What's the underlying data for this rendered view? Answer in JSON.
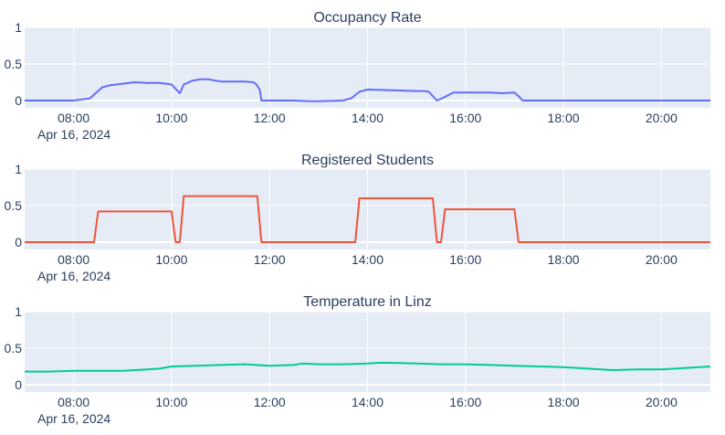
{
  "chart_data": [
    {
      "type": "line",
      "title": "Occupancy Rate",
      "color": "#636efa",
      "xlim": [
        "07:00",
        "21:00"
      ],
      "ylim": [
        0,
        1
      ],
      "x_ticks": [
        "08:00",
        "10:00",
        "12:00",
        "14:00",
        "16:00",
        "18:00",
        "20:00"
      ],
      "x_date_label": "Apr 16, 2024",
      "y_ticks": [
        "0",
        "0.5",
        "1"
      ],
      "x": [
        "07:00",
        "08:00",
        "08:20",
        "08:35",
        "08:45",
        "09:00",
        "09:15",
        "09:30",
        "09:45",
        "10:00",
        "10:05",
        "10:10",
        "10:15",
        "10:25",
        "10:35",
        "10:45",
        "11:00",
        "11:15",
        "11:30",
        "11:40",
        "11:43",
        "11:48",
        "11:50",
        "12:00",
        "12:30",
        "12:50",
        "13:00",
        "13:30",
        "13:40",
        "13:50",
        "14:00",
        "14:30",
        "15:00",
        "15:10",
        "15:15",
        "15:25",
        "15:35",
        "15:45",
        "16:00",
        "16:30",
        "16:45",
        "17:00",
        "17:05",
        "17:10",
        "17:20",
        "18:00",
        "19:00",
        "20:00",
        "21:00"
      ],
      "y": [
        0.0,
        0.0,
        0.03,
        0.18,
        0.21,
        0.23,
        0.25,
        0.24,
        0.24,
        0.22,
        0.16,
        0.1,
        0.22,
        0.27,
        0.29,
        0.29,
        0.26,
        0.26,
        0.26,
        0.25,
        0.23,
        0.15,
        0.0,
        0.0,
        0.0,
        -0.01,
        -0.01,
        0.0,
        0.03,
        0.12,
        0.15,
        0.14,
        0.13,
        0.13,
        0.12,
        0.0,
        0.05,
        0.11,
        0.11,
        0.11,
        0.1,
        0.11,
        0.06,
        0.0,
        0.0,
        0.0,
        0.0,
        0.0,
        0.0
      ]
    },
    {
      "type": "line",
      "title": "Registered Students",
      "color": "#ef553b",
      "xlim": [
        "07:00",
        "21:00"
      ],
      "ylim": [
        0,
        1
      ],
      "x_ticks": [
        "08:00",
        "10:00",
        "12:00",
        "14:00",
        "16:00",
        "18:00",
        "20:00"
      ],
      "x_date_label": "Apr 16, 2024",
      "y_ticks": [
        "0",
        "0.5",
        "1"
      ],
      "x": [
        "07:00",
        "08:25",
        "08:30",
        "10:00",
        "10:05",
        "10:10",
        "10:15",
        "11:45",
        "11:50",
        "13:45",
        "13:50",
        "15:20",
        "15:25",
        "15:30",
        "15:35",
        "17:00",
        "17:05",
        "21:00"
      ],
      "y": [
        0,
        0,
        0.42,
        0.42,
        0,
        0,
        0.63,
        0.63,
        0,
        0,
        0.6,
        0.6,
        0,
        0,
        0.45,
        0.45,
        0,
        0
      ]
    },
    {
      "type": "line",
      "title": "Temperature in Linz",
      "color": "#00cc96",
      "xlim": [
        "07:00",
        "21:00"
      ],
      "ylim": [
        0,
        1
      ],
      "x_ticks": [
        "08:00",
        "10:00",
        "12:00",
        "14:00",
        "16:00",
        "18:00",
        "20:00"
      ],
      "x_date_label": "Apr 16, 2024",
      "y_ticks": [
        "0",
        "0.5",
        "1"
      ],
      "x": [
        "07:00",
        "07:30",
        "08:00",
        "08:30",
        "09:00",
        "09:15",
        "09:30",
        "09:45",
        "10:00",
        "10:30",
        "11:00",
        "11:30",
        "12:00",
        "12:30",
        "12:40",
        "13:00",
        "13:30",
        "14:00",
        "14:15",
        "14:30",
        "15:00",
        "15:30",
        "16:00",
        "16:30",
        "17:00",
        "17:30",
        "18:00",
        "18:30",
        "19:00",
        "19:30",
        "20:00",
        "20:30",
        "21:00"
      ],
      "y": [
        0.18,
        0.18,
        0.19,
        0.19,
        0.19,
        0.2,
        0.21,
        0.22,
        0.25,
        0.26,
        0.27,
        0.28,
        0.26,
        0.27,
        0.29,
        0.28,
        0.28,
        0.29,
        0.3,
        0.3,
        0.29,
        0.28,
        0.28,
        0.27,
        0.26,
        0.25,
        0.24,
        0.22,
        0.2,
        0.21,
        0.21,
        0.23,
        0.25
      ]
    }
  ]
}
